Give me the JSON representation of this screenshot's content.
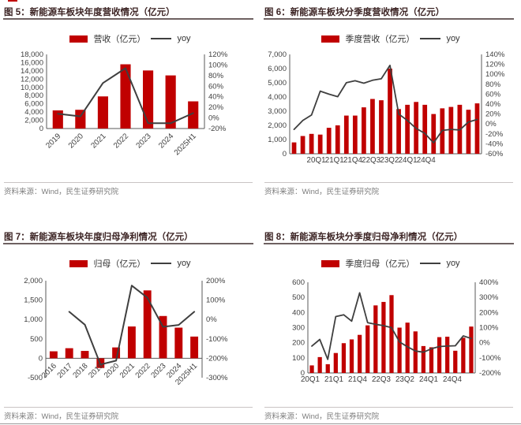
{
  "source_note": "资料来源：Wind，民生证券研究院",
  "chart_data": [
    {
      "id": "fig5",
      "type": "bar",
      "title": "图 5：新能源车板块年度营收情况（亿元）",
      "legend": {
        "bar": "营收（亿元）",
        "line": "yoy"
      },
      "legend_position": "top",
      "grid": false,
      "categories": [
        "2019",
        "2020",
        "2021",
        "2022",
        "2023",
        "2024",
        "2025H1"
      ],
      "series": [
        {
          "name": "营收（亿元）",
          "type": "bar",
          "axis": "left",
          "values": [
            4400,
            4550,
            7800,
            15600,
            14100,
            12900,
            6600
          ]
        },
        {
          "name": "yoy",
          "type": "line",
          "axis": "right",
          "values": [
            8,
            3,
            66,
            94,
            -10,
            -10,
            9
          ]
        }
      ],
      "ylabel": "",
      "xlabel": "",
      "ylim": [
        0,
        18000
      ],
      "ystep": 2000,
      "y2lim": [
        -20,
        120
      ],
      "y2step": 20,
      "source": "资料来源：Wind，民生证券研究院",
      "colors": {
        "bar": "#c00000",
        "line": "#3f3f3f"
      }
    },
    {
      "id": "fig6",
      "type": "bar",
      "title": "图 6：新能源车板块分季度营收情况（亿元）",
      "legend": {
        "bar": "季度营收（亿元）",
        "line": "yoy"
      },
      "legend_position": "top",
      "grid": false,
      "categories": [
        "20Q1",
        "20Q2",
        "20Q3",
        "20Q4",
        "21Q1",
        "21Q2",
        "21Q3",
        "21Q4",
        "22Q1",
        "22Q2",
        "22Q3",
        "22Q4",
        "23Q1",
        "23Q2",
        "23Q3",
        "23Q4",
        "24Q1",
        "24Q2",
        "24Q3",
        "24Q4",
        "25Q1",
        "25Q2"
      ],
      "x_tick_labels": [
        "20Q1",
        "21Q1",
        "21Q4",
        "22Q3",
        "23Q2",
        "24Q1",
        "24Q4"
      ],
      "series": [
        {
          "name": "季度营收（亿元）",
          "type": "bar",
          "axis": "left",
          "values": [
            800,
            1250,
            1400,
            1350,
            1830,
            2000,
            2690,
            2690,
            3270,
            3860,
            3770,
            6000,
            3150,
            3450,
            3650,
            3450,
            2800,
            3200,
            3300,
            3450,
            3100,
            3550
          ]
        },
        {
          "name": "yoy",
          "type": "line",
          "axis": "right",
          "values": [
            -11,
            7,
            18,
            66,
            60,
            55,
            83,
            87,
            82,
            88,
            91,
            118,
            20,
            7,
            -9,
            -19,
            -38,
            -13,
            -11,
            -12,
            4,
            9
          ]
        }
      ],
      "ylabel": "",
      "xlabel": "",
      "ylim": [
        0,
        7000
      ],
      "ystep": 1000,
      "y2lim": [
        -60,
        140
      ],
      "y2step": 20,
      "source": "资料来源：Wind，民生证券研究院",
      "colors": {
        "bar": "#c00000",
        "line": "#3f3f3f"
      }
    },
    {
      "id": "fig7",
      "type": "bar",
      "title": "图 7：新能源车板块年度归母净利情况（亿元）",
      "legend": {
        "bar": "归母（亿元）",
        "line": "yoy"
      },
      "legend_position": "top",
      "grid": false,
      "categories": [
        "2016",
        "2017",
        "2018",
        "2019",
        "2020",
        "2021",
        "2022",
        "2023",
        "2024",
        "2025H1"
      ],
      "series": [
        {
          "name": "归母（亿元）",
          "type": "bar",
          "axis": "left",
          "values": [
            180,
            260,
            190,
            -250,
            280,
            820,
            1750,
            1090,
            790,
            560
          ]
        },
        {
          "name": "yoy",
          "type": "line",
          "axis": "right",
          "values": [
            null,
            40,
            -27,
            -232,
            -212,
            175,
            112,
            -38,
            -28,
            40
          ]
        }
      ],
      "ylabel": "",
      "xlabel": "",
      "ylim": [
        -500,
        2000
      ],
      "ystep": 500,
      "y2lim": [
        -300,
        200
      ],
      "y2step": 100,
      "source": "资料来源：Wind，民生证券研究院",
      "colors": {
        "bar": "#c00000",
        "line": "#3f3f3f"
      }
    },
    {
      "id": "fig8",
      "type": "bar",
      "title": "图 8：新能源车板块分季度归母净利情况（亿元）",
      "legend": {
        "bar": "季度归母（亿元）",
        "line": "yoy"
      },
      "legend_position": "top",
      "grid": false,
      "categories": [
        "20Q1",
        "20Q2",
        "20Q3",
        "20Q4",
        "21Q1",
        "21Q2",
        "21Q3",
        "21Q4",
        "22Q1",
        "22Q2",
        "22Q3",
        "22Q4",
        "23Q1",
        "23Q2",
        "23Q3",
        "23Q4",
        "24Q1",
        "24Q2",
        "24Q3",
        "24Q4",
        "25Q1"
      ],
      "x_tick_labels": [
        "20Q1",
        "21Q1",
        "21Q4",
        "22Q3",
        "23Q2",
        "24Q1",
        "24Q4"
      ],
      "series": [
        {
          "name": "季度归母（亿元）",
          "type": "bar",
          "axis": "left",
          "values": [
            50,
            105,
            58,
            132,
            197,
            222,
            252,
            315,
            447,
            470,
            515,
            300,
            333,
            275,
            178,
            170,
            237,
            240,
            147,
            233,
            307
          ]
        },
        {
          "name": "yoy",
          "type": "line",
          "axis": "right",
          "values": [
            -22,
            22,
            -110,
            173,
            185,
            143,
            330,
            133,
            122,
            113,
            100,
            5,
            -27,
            -55,
            -63,
            -40,
            -25,
            -22,
            -20,
            45,
            28
          ]
        }
      ],
      "ylabel": "",
      "xlabel": "",
      "ylim": [
        0,
        600
      ],
      "ystep": 100,
      "y2lim": [
        -200,
        400
      ],
      "y2step": 100,
      "source": "资料来源：Wind，民生证券研究院",
      "colors": {
        "bar": "#c00000",
        "line": "#3f3f3f"
      }
    }
  ]
}
